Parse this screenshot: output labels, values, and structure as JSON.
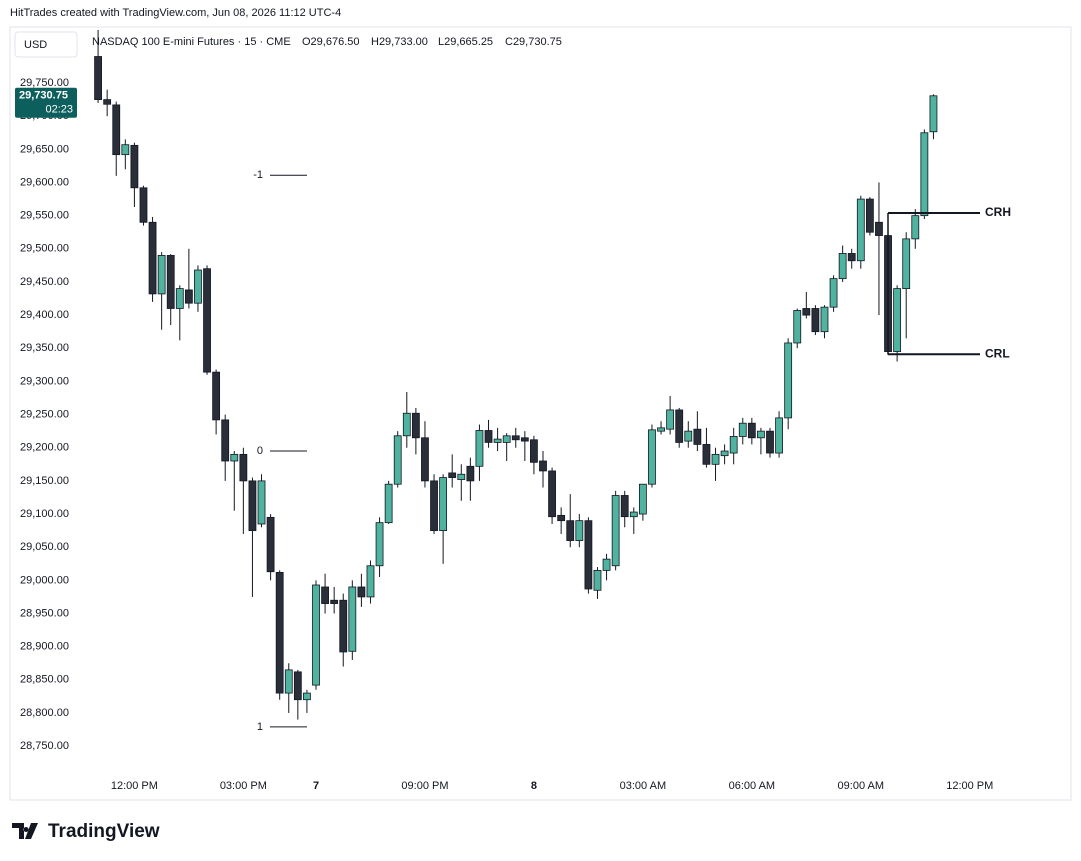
{
  "chart_data": {
    "type": "candlestick",
    "watermark": "HitTrades created with TradingView.com, Jun 08, 2026 11:12 UTC-4",
    "currency": "USD",
    "symbol": "NASDAQ 100 E-mini Futures · 15 · CME",
    "ohlc_legend": [
      "O29,676.50",
      "H29,733.00",
      "L29,665.25",
      "C29,730.75"
    ],
    "brand": "TradingView",
    "up_color": "#4fb3a0",
    "down_color": "#2a2e39",
    "open": [
      29790,
      29725,
      29717,
      29642,
      29656,
      29592,
      29540,
      29432,
      29490,
      29410,
      29438,
      29418,
      29470,
      29314,
      29242,
      29180,
      29190,
      29150,
      29085,
      29095,
      29012,
      28830,
      28862,
      28820,
      28842,
      28990,
      28970,
      28970,
      28893,
      28990,
      28975,
      29022,
      29087,
      29145,
      29218,
      29252,
      29215,
      29150,
      29075,
      29162,
      29152,
      29172,
      29172,
      29226,
      29208,
      29208,
      29218,
      29215,
      29212,
      29180,
      29165,
      29098,
      29090,
      29060,
      29090,
      28985,
      29015,
      29022,
      29128,
      29096,
      29100,
      29145,
      29225,
      29228,
      29257,
      29210,
      29228,
      29205,
      29175,
      29188,
      29192,
      29217,
      29237,
      29215,
      29225,
      29192,
      29245,
      29358,
      29410,
      29410,
      29375,
      29412,
      29455,
      29493,
      29482,
      29575,
      29540,
      29520,
      29345,
      29440,
      29515,
      29550,
      29676.5
    ],
    "high": [
      29830,
      29740,
      29722,
      29665,
      29660,
      29595,
      29548,
      29495,
      29492,
      29445,
      29500,
      29475,
      29475,
      29318,
      29250,
      29195,
      29200,
      29155,
      29160,
      29100,
      29015,
      28875,
      28865,
      28835,
      29000,
      29010,
      28990,
      28980,
      29000,
      29010,
      29030,
      29095,
      29150,
      29225,
      29284,
      29260,
      29240,
      29160,
      29160,
      29190,
      29175,
      29185,
      29235,
      29242,
      29230,
      29222,
      29230,
      29225,
      29218,
      29195,
      29170,
      29110,
      29130,
      29100,
      29095,
      29020,
      29040,
      29135,
      29135,
      29110,
      29145,
      29235,
      29240,
      29278,
      29260,
      29240,
      29255,
      29230,
      29200,
      29205,
      29230,
      29245,
      29245,
      29230,
      29230,
      29255,
      29365,
      29410,
      29435,
      29415,
      29415,
      29460,
      29505,
      29500,
      29580,
      29578,
      29600,
      29530,
      29445,
      29525,
      29560,
      29680,
      29733
    ],
    "low": [
      29720,
      29700,
      29610,
      29620,
      29563,
      29535,
      29420,
      29378,
      29385,
      29362,
      29410,
      29405,
      29310,
      29220,
      29150,
      29105,
      29070,
      28975,
      29080,
      29000,
      28820,
      28800,
      28790,
      28800,
      28835,
      28950,
      28950,
      28870,
      28880,
      28960,
      28965,
      29005,
      29085,
      29140,
      29200,
      29190,
      29140,
      29070,
      29025,
      29140,
      29120,
      29120,
      29150,
      29200,
      29195,
      29180,
      29200,
      29180,
      29160,
      29140,
      29085,
      29070,
      29050,
      29050,
      28980,
      28972,
      29000,
      29015,
      29080,
      29070,
      29090,
      29140,
      29220,
      29220,
      29200,
      29200,
      29195,
      29170,
      29150,
      29175,
      29175,
      29205,
      29205,
      29190,
      29185,
      29185,
      29228,
      29350,
      29395,
      29370,
      29365,
      29405,
      29450,
      29470,
      29470,
      29520,
      29400,
      29340,
      29330,
      29365,
      29500,
      29545,
      29665.25
    ],
    "close": [
      29725,
      29718,
      29642,
      29657,
      29592,
      29540,
      29432,
      29490,
      29410,
      29440,
      29418,
      29468,
      29314,
      29242,
      29180,
      29190,
      29150,
      29075,
      29150,
      29013,
      28830,
      28865,
      28820,
      28830,
      28993,
      28965,
      28965,
      28892,
      28990,
      28975,
      29022,
      29087,
      29145,
      29218,
      29252,
      29215,
      29150,
      29075,
      29155,
      29155,
      29160,
      29150,
      29226,
      29208,
      29213,
      29218,
      29212,
      29210,
      29178,
      29165,
      29096,
      29090,
      29060,
      29090,
      28987,
      29015,
      29032,
      29128,
      29096,
      29103,
      29145,
      29227,
      29230,
      29257,
      29208,
      29225,
      29205,
      29175,
      29190,
      29195,
      29217,
      29237,
      29215,
      29225,
      29192,
      29245,
      29358,
      29407,
      29400,
      29375,
      29412,
      29455,
      29493,
      29482,
      29575,
      29525,
      29520,
      29345,
      29440,
      29515,
      29550,
      29675,
      29730.75
    ],
    "xlim": [
      -1,
      99
    ],
    "xticks": [
      {
        "value": 4,
        "label": "12:00 PM"
      },
      {
        "value": 16,
        "label": "03:00 PM"
      },
      {
        "value": 24,
        "label": "7"
      },
      {
        "value": 36,
        "label": "09:00 PM"
      },
      {
        "value": 48,
        "label": "8"
      },
      {
        "value": 60,
        "label": "03:00 AM"
      },
      {
        "value": 72,
        "label": "06:00 AM"
      },
      {
        "value": 84,
        "label": "09:00 AM"
      },
      {
        "value": 96,
        "label": "12:00 PM"
      }
    ],
    "ylim": [
      28717,
      29833
    ],
    "yticks": [
      {
        "value": 28750,
        "label": "28,750.00"
      },
      {
        "value": 28800,
        "label": "28,800.00"
      },
      {
        "value": 28850,
        "label": "28,850.00"
      },
      {
        "value": 28900,
        "label": "28,900.00"
      },
      {
        "value": 28950,
        "label": "28,950.00"
      },
      {
        "value": 29000,
        "label": "29,000.00"
      },
      {
        "value": 29050,
        "label": "29,050.00"
      },
      {
        "value": 29100,
        "label": "29,100.00"
      },
      {
        "value": 29150,
        "label": "29,150.00"
      },
      {
        "value": 29200,
        "label": "29,200.00"
      },
      {
        "value": 29250,
        "label": "29,250.00"
      },
      {
        "value": 29300,
        "label": "29,300.00"
      },
      {
        "value": 29350,
        "label": "29,350.00"
      },
      {
        "value": 29400,
        "label": "29,400.00"
      },
      {
        "value": 29450,
        "label": "29,450.00"
      },
      {
        "value": 29500,
        "label": "29,500.00"
      },
      {
        "value": 29550,
        "label": "29,550.00"
      },
      {
        "value": 29600,
        "label": "29,600.00"
      },
      {
        "value": 29650,
        "label": "29,650.00"
      },
      {
        "value": 29700,
        "label": "29,700.00"
      },
      {
        "value": 29750,
        "label": "29,750.00"
      }
    ],
    "price_tag": {
      "label": "29,730.75",
      "countdown": "02:23",
      "color": "#0c5f5c"
    },
    "levels": [
      {
        "label": "-1",
        "value": 29611
      },
      {
        "label": "0",
        "value": 29195
      },
      {
        "label": "1",
        "value": 28779
      }
    ],
    "range_lines": [
      {
        "label": "CRH",
        "value": 29554
      },
      {
        "label": "CRL",
        "value": 29341
      }
    ]
  }
}
